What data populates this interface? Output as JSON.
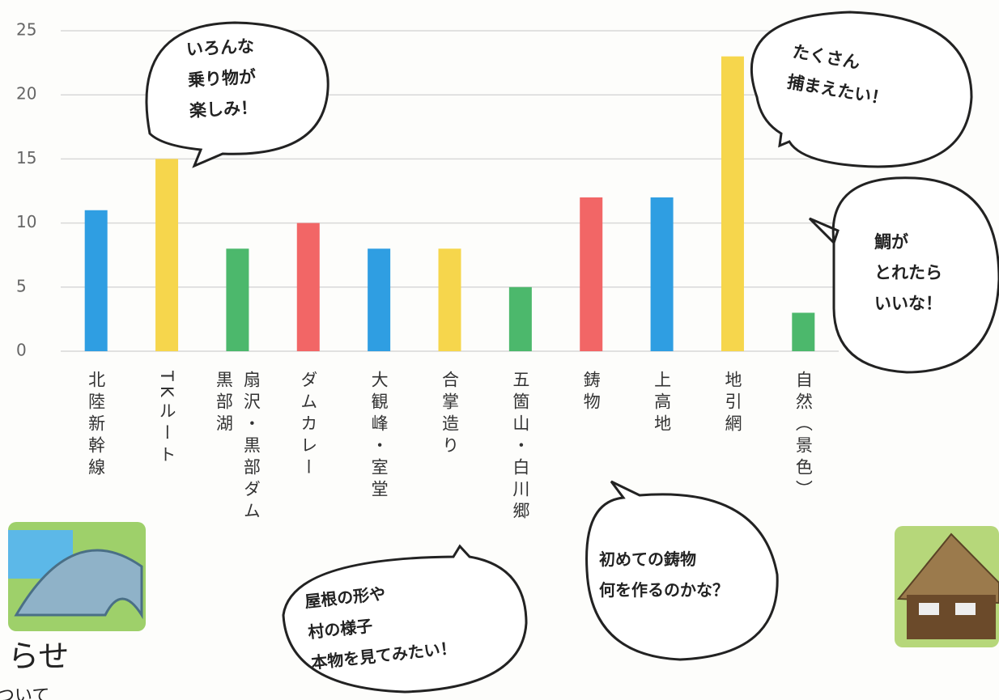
{
  "chart_data": {
    "type": "bar",
    "categories": [
      "北陸新幹線",
      "TKルート",
      "扇沢・黒部ダム\n黒部湖",
      "ダムカレー",
      "大観峰・室堂",
      "合掌造り",
      "五箇山・白川郷",
      "鋳物",
      "上高地",
      "地引網",
      "自然（景色）"
    ],
    "values": [
      11,
      15,
      8,
      10,
      8,
      8,
      5,
      12,
      12,
      23,
      3
    ],
    "colors": [
      "#2f9ee2",
      "#f6d64c",
      "#4cb86c",
      "#f26666",
      "#2f9ee2",
      "#f6d64c",
      "#4cb86c",
      "#f26666",
      "#2f9ee2",
      "#f6d64c",
      "#4cb86c"
    ],
    "ylim": [
      0,
      25
    ],
    "yticks": [
      0,
      5,
      10,
      15,
      20,
      25
    ],
    "grid": true,
    "annotations": [
      "いろんな\n乗り物が\n楽しみ！",
      "たくさん\n捕まえたい！",
      "鯛が\nとれたら\nいいな！",
      "初めての鋳物\n何を作るのかな？",
      "屋根の形や\n村の様子\n本物を見てみたい！"
    ]
  },
  "page_text": [
    "らせ",
    "ついて"
  ]
}
